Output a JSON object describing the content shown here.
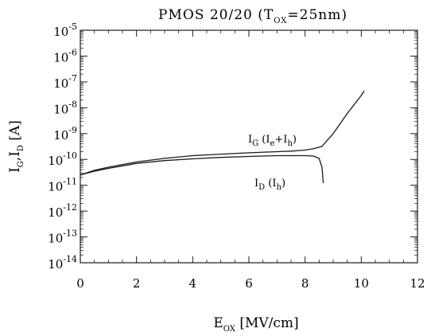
{
  "chart_data": {
    "type": "line",
    "title": {
      "main": "PMOS 20/20 (T",
      "sub": "OX",
      "rest": "=25nm)"
    },
    "xlabel": {
      "main": "E",
      "sub": "OX",
      "rest": " [MV/cm]"
    },
    "ylabel": {
      "p1": "I",
      "s1": "G",
      "p2": ",I",
      "s2": "D",
      "p3": " [A]"
    },
    "xlim": [
      0,
      12
    ],
    "ylim": [
      1e-14,
      1e-05
    ],
    "yscale": "log",
    "xticks": [
      "0",
      "2",
      "4",
      "6",
      "8",
      "10",
      "12"
    ],
    "yticks": [
      {
        "base": "10",
        "exp": "-5"
      },
      {
        "base": "10",
        "exp": "-6"
      },
      {
        "base": "10",
        "exp": "-7"
      },
      {
        "base": "10",
        "exp": "-8"
      },
      {
        "base": "10",
        "exp": "-9"
      },
      {
        "base": "10",
        "exp": "-10"
      },
      {
        "base": "10",
        "exp": "-11"
      },
      {
        "base": "10",
        "exp": "-12"
      },
      {
        "base": "10",
        "exp": "-13"
      },
      {
        "base": "10",
        "exp": "-14"
      }
    ],
    "series": [
      {
        "label": {
          "main": "I",
          "sub": "G",
          "rest": " (I",
          "sub2": "e",
          "rest2": "+I",
          "sub3": "h",
          "rest3": ")"
        },
        "x": [
          0,
          0.5,
          1,
          2,
          3,
          4,
          5,
          6,
          7,
          7.5,
          8,
          8.3,
          8.6,
          9,
          9.5,
          10,
          10.1
        ],
        "y": [
          2.5e-11,
          3.8e-11,
          5e-11,
          8e-11,
          1.1e-10,
          1.4e-10,
          1.6e-10,
          1.8e-10,
          2e-10,
          2.1e-10,
          2.3e-10,
          2.6e-10,
          3.2e-10,
          1e-09,
          6e-09,
          3e-08,
          4.5e-08
        ]
      },
      {
        "label": {
          "main": "I",
          "sub": "D",
          "rest": " (I",
          "sub2": "h",
          "rest2": ")"
        },
        "x": [
          0,
          0.5,
          1,
          2,
          3,
          4,
          5,
          6,
          7,
          7.5,
          8,
          8.3,
          8.5,
          8.6,
          8.65
        ],
        "y": [
          2.5e-11,
          3.5e-11,
          4.5e-11,
          7e-11,
          9e-11,
          1.05e-10,
          1.2e-10,
          1.3e-10,
          1.4e-10,
          1.4e-10,
          1.4e-10,
          1.35e-10,
          1.1e-10,
          5e-11,
          1.2e-11
        ]
      }
    ],
    "grid": false,
    "legend": "none"
  }
}
